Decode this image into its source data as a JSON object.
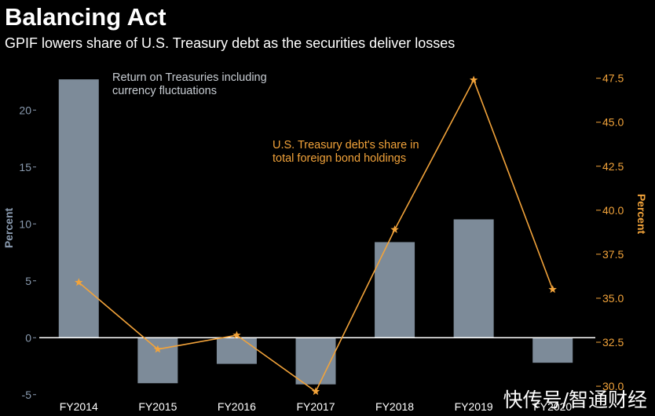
{
  "header": {
    "title": "Balancing Act",
    "subtitle": "GPIF lowers share of U.S. Treasury debt as the securities deliver losses"
  },
  "watermark": "快传号/智通财经",
  "colors": {
    "background": "#000000",
    "bar": "#7d8b99",
    "line": "#f2a33a",
    "left_axis_text": "#8a9bb0",
    "right_axis_text": "#f2a33a",
    "zero_line": "#ffffff",
    "x_tick_text": "#ffffff"
  },
  "chart_data": {
    "type": "bar",
    "combo_secondary_type": "line",
    "categories": [
      "FY2014",
      "FY2015",
      "FY2016",
      "FY2017",
      "FY2018",
      "FY2019",
      "FY2020"
    ],
    "series": [
      {
        "type": "bar",
        "axis": "left",
        "values": [
          22.7,
          -4.0,
          -2.3,
          -4.1,
          8.4,
          10.4,
          -2.2
        ]
      },
      {
        "type": "line",
        "axis": "right",
        "marker": "star",
        "values": [
          35.9,
          32.1,
          32.9,
          29.7,
          38.9,
          47.4,
          35.5
        ]
      }
    ],
    "annotations": [
      {
        "id": "bar-annotation",
        "text_lines": [
          "Return on Treasuries including",
          "currency fluctuations"
        ]
      },
      {
        "id": "line-annotation",
        "text_lines": [
          "U.S. Treasury debt's share in",
          "total foreign bond holdings"
        ]
      }
    ],
    "ylabel": "Percent",
    "y2label": "Percent",
    "ylim": [
      -5.5,
      24.5
    ],
    "yticks": [
      -5,
      0,
      5,
      10,
      15,
      20
    ],
    "ytick_labels": [
      "-5",
      "0",
      "5",
      "10",
      "15",
      "20"
    ],
    "y2lim": [
      29.2,
      48.6
    ],
    "y2ticks": [
      30,
      32.5,
      35,
      37.5,
      40,
      42.5,
      45,
      47.5
    ],
    "y2tick_labels": [
      "30.0",
      "32.5",
      "35.0",
      "37.5",
      "40.0",
      "42.5",
      "45.0",
      "47.5"
    ],
    "grid": false,
    "legend": "none"
  }
}
